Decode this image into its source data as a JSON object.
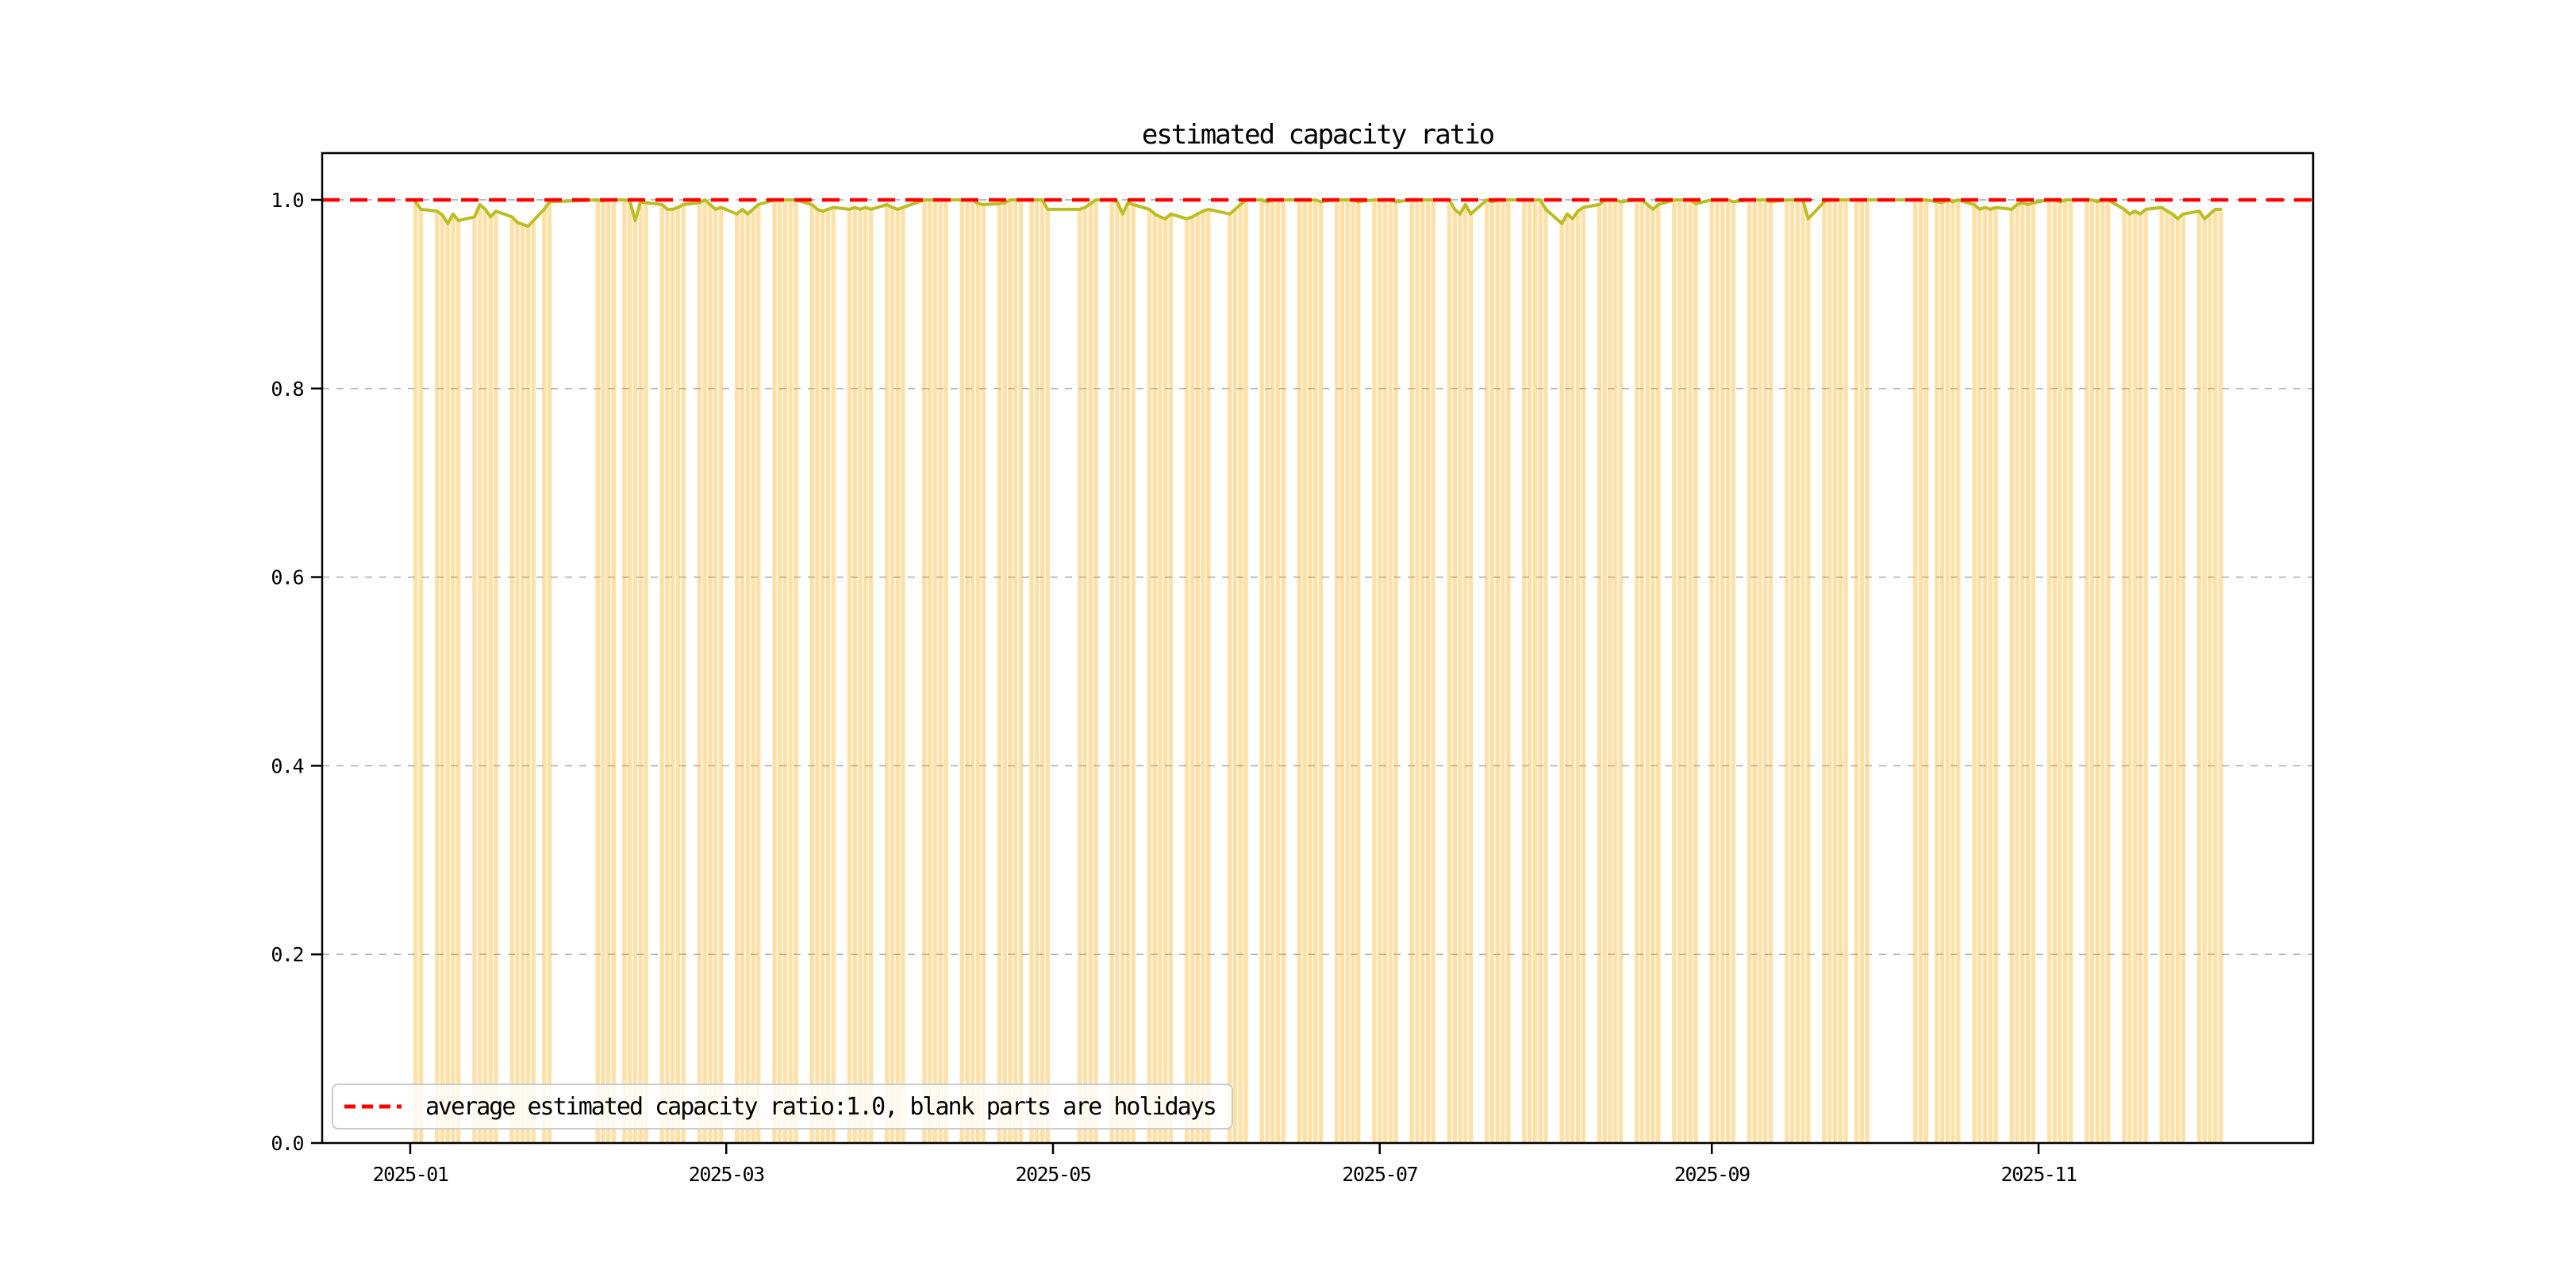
{
  "chart_data": {
    "type": "bar+line",
    "title": "estimated capacity ratio",
    "x_axis": {
      "epoch": "2025-01-01",
      "tick_labels": [
        "2025-01",
        "2025-03",
        "2025-05",
        "2025-07",
        "2025-09",
        "2025-11"
      ],
      "tick_day_offsets": [
        0,
        59,
        120,
        181,
        243,
        304
      ],
      "xlim_days": [
        -16.44,
        355.26
      ]
    },
    "y_axis": {
      "tick_labels": [
        "0.0",
        "0.2",
        "0.4",
        "0.6",
        "0.8",
        "1.0"
      ],
      "tick_values": [
        0.0,
        0.2,
        0.4,
        0.6,
        0.8,
        1.0
      ],
      "ylim": [
        0.0,
        1.0496
      ],
      "grid": true,
      "grid_color": "#b0b0b0"
    },
    "average_line": {
      "value": 1.0,
      "color": "#ff0000",
      "style": "dashed"
    },
    "legend": {
      "label": "average estimated capacity ratio:1.0, blank parts are holidays",
      "marker_color": "#ff0000",
      "position": "lower left",
      "border_color": "#cccccc"
    },
    "series": {
      "name": "estimated capacity ratio",
      "bar_color": "#ffa500",
      "bar_alpha": 0.35,
      "line_color": "#bcbd22",
      "start_date": "2025-01-02",
      "end_date": "2025-12-05",
      "workweek_days": [
        1,
        2,
        3,
        4,
        5
      ],
      "holidays": [
        "2025-01-01",
        "2025-01-28",
        "2025-01-29",
        "2025-01-30",
        "2025-01-31",
        "2025-02-01",
        "2025-02-02",
        "2025-02-03",
        "2025-02-04",
        "2025-04-04",
        "2025-04-05",
        "2025-04-06",
        "2025-05-01",
        "2025-05-02",
        "2025-05-03",
        "2025-05-04",
        "2025-05-05",
        "2025-05-31",
        "2025-06-01",
        "2025-06-02",
        "2025-10-01",
        "2025-10-02",
        "2025-10-03",
        "2025-10-04",
        "2025-10-05",
        "2025-10-06",
        "2025-10-07",
        "2025-10-08"
      ],
      "extra_workdays": [
        "2025-01-26",
        "2025-02-08",
        "2025-04-27",
        "2025-09-28",
        "2025-10-11"
      ],
      "default_value": 1.0,
      "values_override": {
        "2025-01-02": 0.998,
        "2025-01-03": 0.99,
        "2025-01-06": 0.988,
        "2025-01-07": 0.984,
        "2025-01-08": 0.975,
        "2025-01-09": 0.985,
        "2025-01-10": 0.978,
        "2025-01-13": 0.982,
        "2025-01-14": 0.995,
        "2025-01-15": 0.99,
        "2025-01-16": 0.982,
        "2025-01-17": 0.988,
        "2025-01-20": 0.982,
        "2025-01-21": 0.976,
        "2025-01-22": 0.974,
        "2025-01-23": 0.972,
        "2025-01-24": 0.978,
        "2025-01-26": 0.99,
        "2025-01-27": 0.998,
        "2025-02-06": 0.999,
        "2025-02-11": 0.999,
        "2025-02-12": 0.978,
        "2025-02-13": 0.998,
        "2025-02-14": 0.997,
        "2025-02-17": 0.995,
        "2025-02-18": 0.99,
        "2025-02-19": 0.99,
        "2025-02-20": 0.992,
        "2025-02-21": 0.995,
        "2025-02-24": 0.997,
        "2025-02-26": 0.995,
        "2025-02-27": 0.99,
        "2025-02-28": 0.992,
        "2025-03-03": 0.985,
        "2025-03-04": 0.99,
        "2025-03-05": 0.985,
        "2025-03-06": 0.99,
        "2025-03-07": 0.995,
        "2025-03-17": 0.995,
        "2025-03-18": 0.99,
        "2025-03-19": 0.988,
        "2025-03-20": 0.99,
        "2025-03-21": 0.992,
        "2025-03-24": 0.99,
        "2025-03-25": 0.992,
        "2025-03-26": 0.99,
        "2025-03-27": 0.992,
        "2025-03-28": 0.99,
        "2025-03-31": 0.995,
        "2025-04-01": 0.992,
        "2025-04-02": 0.99,
        "2025-04-03": 0.992,
        "2025-04-17": 0.996,
        "2025-04-18": 0.995,
        "2025-04-21": 0.996,
        "2025-04-22": 0.997,
        "2025-04-30": 0.99,
        "2025-05-06": 0.99,
        "2025-05-07": 0.992,
        "2025-05-08": 0.996,
        "2025-05-13": 0.998,
        "2025-05-14": 0.985,
        "2025-05-15": 0.997,
        "2025-05-16": 0.995,
        "2025-05-19": 0.99,
        "2025-05-20": 0.985,
        "2025-05-21": 0.982,
        "2025-05-22": 0.98,
        "2025-05-23": 0.985,
        "2025-05-26": 0.98,
        "2025-05-27": 0.982,
        "2025-05-28": 0.985,
        "2025-05-29": 0.988,
        "2025-05-30": 0.99,
        "2025-06-03": 0.985,
        "2025-06-04": 0.99,
        "2025-06-05": 0.995,
        "2025-06-10": 0.998,
        "2025-06-20": 0.998,
        "2025-06-27": 0.998,
        "2025-07-04": 0.998,
        "2025-07-15": 0.99,
        "2025-07-16": 0.985,
        "2025-07-17": 0.995,
        "2025-07-18": 0.985,
        "2025-07-22": 0.998,
        "2025-08-01": 0.99,
        "2025-08-04": 0.975,
        "2025-08-05": 0.985,
        "2025-08-06": 0.98,
        "2025-08-07": 0.988,
        "2025-08-08": 0.992,
        "2025-08-11": 0.995,
        "2025-08-15": 0.998,
        "2025-08-20": 0.995,
        "2025-08-21": 0.99,
        "2025-08-22": 0.995,
        "2025-08-29": 0.996,
        "2025-09-05": 0.998,
        "2025-09-12": 0.998,
        "2025-09-19": 0.98,
        "2025-09-22": 0.998,
        "2025-10-13": 0.998,
        "2025-10-14": 0.997,
        "2025-10-16": 0.998,
        "2025-10-20": 0.995,
        "2025-10-21": 0.99,
        "2025-10-22": 0.992,
        "2025-10-23": 0.99,
        "2025-10-24": 0.992,
        "2025-10-27": 0.99,
        "2025-10-28": 0.995,
        "2025-10-29": 0.997,
        "2025-10-30": 0.995,
        "2025-10-31": 0.997,
        "2025-11-05": 0.998,
        "2025-11-12": 0.998,
        "2025-11-17": 0.99,
        "2025-11-18": 0.985,
        "2025-11-19": 0.988,
        "2025-11-20": 0.985,
        "2025-11-21": 0.99,
        "2025-11-24": 0.992,
        "2025-11-25": 0.988,
        "2025-11-26": 0.985,
        "2025-11-27": 0.98,
        "2025-11-28": 0.985,
        "2025-12-01": 0.988,
        "2025-12-02": 0.98,
        "2025-12-03": 0.985,
        "2025-12-04": 0.99,
        "2025-12-05": 0.99
      }
    },
    "colors": {
      "spine": "#000000",
      "text": "#000000",
      "background": "#ffffff"
    }
  }
}
